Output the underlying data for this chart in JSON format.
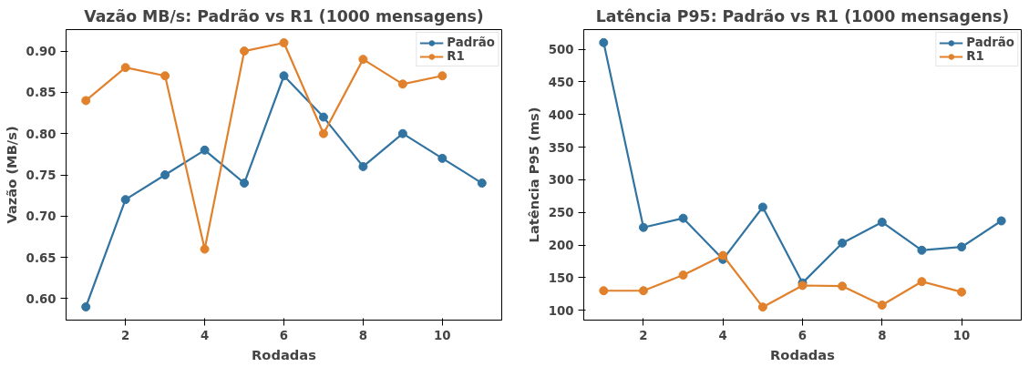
{
  "chart_data": [
    {
      "type": "line",
      "title": "Vazão MB/s: Padrão vs R1 (1000 mensagens)",
      "xlabel": "Rodadas",
      "ylabel": "Vazão (MB/s)",
      "xlim": [
        0.5,
        11.5
      ],
      "xticks": [
        2,
        4,
        6,
        8,
        10
      ],
      "ylim": [
        0.574,
        0.926
      ],
      "yticks": [
        {
          "value": 0.6,
          "label": "0.60"
        },
        0.65,
        {
          "value": 0.7,
          "label": "0.70"
        },
        0.75,
        {
          "value": 0.8,
          "label": "0.80"
        },
        0.85,
        {
          "value": 0.9,
          "label": "0.90"
        }
      ],
      "marker": "circle",
      "line_style": "solid",
      "grid": false,
      "legend": "top right",
      "series": [
        {
          "name": "Padrão",
          "color": "#3274a1",
          "x": [
            1,
            2,
            3,
            4,
            5,
            6,
            7,
            8,
            9,
            10,
            11
          ],
          "values": [
            0.59,
            0.72,
            0.75,
            0.78,
            0.74,
            0.87,
            0.82,
            0.76,
            0.8,
            0.77,
            0.74
          ]
        },
        {
          "name": "R1",
          "color": "#e1812c",
          "x": [
            1,
            2,
            3,
            4,
            5,
            6,
            7,
            8,
            9,
            10
          ],
          "values": [
            0.84,
            0.88,
            0.87,
            0.66,
            0.9,
            0.91,
            0.8,
            0.89,
            0.86,
            0.87
          ]
        }
      ]
    },
    {
      "type": "line",
      "title": "Latência P95: Padrão vs R1 (1000 mensagens)",
      "xlabel": "Rodadas",
      "ylabel": "Latência P95 (ms)",
      "xlim": [
        0.5,
        11.5
      ],
      "xticks": [
        2,
        4,
        6,
        8,
        10
      ],
      "ylim": [
        85,
        530
      ],
      "yticks": [
        100,
        150,
        200,
        250,
        300,
        350,
        400,
        450,
        500
      ],
      "marker": "circle",
      "line_style": "solid",
      "grid": false,
      "legend": "top right",
      "series": [
        {
          "name": "Padrão",
          "color": "#3274a1",
          "x": [
            1,
            2,
            3,
            4,
            5,
            6,
            7,
            8,
            9,
            10,
            11
          ],
          "values": [
            510,
            227,
            241,
            178,
            258,
            142,
            203,
            235,
            192,
            197,
            237
          ]
        },
        {
          "name": "R1",
          "color": "#e1812c",
          "x": [
            1,
            2,
            3,
            4,
            5,
            6,
            7,
            8,
            9,
            10
          ],
          "values": [
            130,
            130,
            154,
            184,
            105,
            138,
            137,
            108,
            144,
            128
          ]
        }
      ]
    }
  ]
}
